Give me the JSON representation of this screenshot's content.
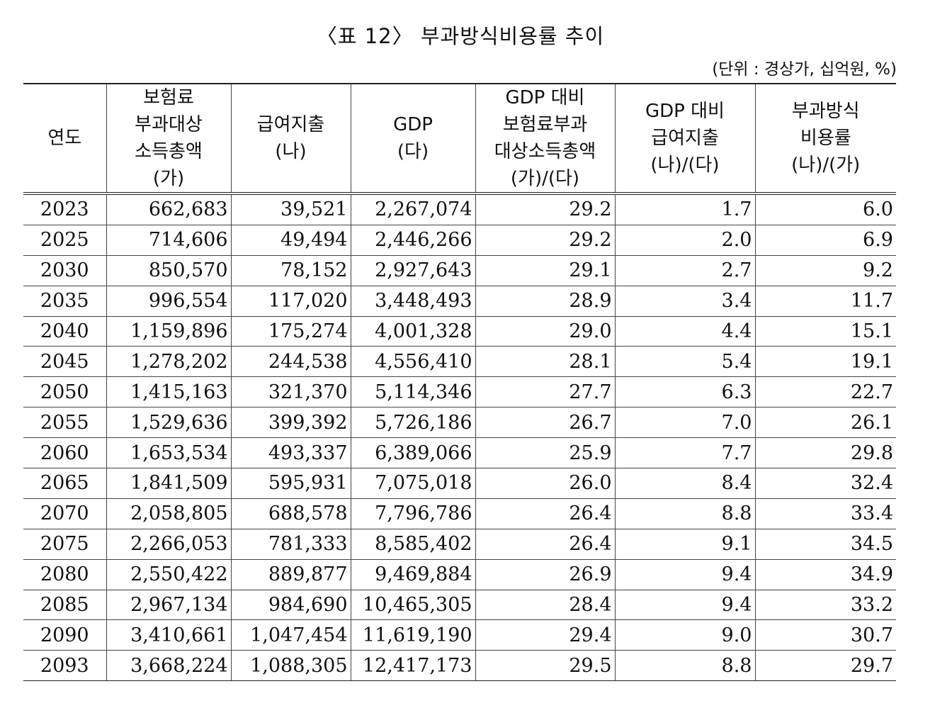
{
  "title": "〈표 12〉 부과방식비용률 추이",
  "unit": "(단위 : 경상가, 십억원, %)",
  "headers": [
    {
      "lines": [
        "연도"
      ]
    },
    {
      "lines": [
        "보험료",
        "부과대상",
        "소득총액",
        "(가)"
      ]
    },
    {
      "lines": [
        "급여지출",
        "(나)"
      ]
    },
    {
      "lines": [
        "GDP",
        "(다)"
      ]
    },
    {
      "lines": [
        "GDP 대비",
        "보험료부과",
        "대상소득총액",
        "(가)/(다)"
      ]
    },
    {
      "lines": [
        "GDP 대비",
        "급여지출",
        "(나)/(다)"
      ]
    },
    {
      "lines": [
        "부과방식",
        "비용률",
        "(나)/(가)"
      ]
    }
  ],
  "rows": [
    [
      "2023",
      "662,683",
      "39,521",
      "2,267,074",
      "29.2",
      "1.7",
      "6.0"
    ],
    [
      "2025",
      "714,606",
      "49,494",
      "2,446,266",
      "29.2",
      "2.0",
      "6.9"
    ],
    [
      "2030",
      "850,570",
      "78,152",
      "2,927,643",
      "29.1",
      "2.7",
      "9.2"
    ],
    [
      "2035",
      "996,554",
      "117,020",
      "3,448,493",
      "28.9",
      "3.4",
      "11.7"
    ],
    [
      "2040",
      "1,159,896",
      "175,274",
      "4,001,328",
      "29.0",
      "4.4",
      "15.1"
    ],
    [
      "2045",
      "1,278,202",
      "244,538",
      "4,556,410",
      "28.1",
      "5.4",
      "19.1"
    ],
    [
      "2050",
      "1,415,163",
      "321,370",
      "5,114,346",
      "27.7",
      "6.3",
      "22.7"
    ],
    [
      "2055",
      "1,529,636",
      "399,392",
      "5,726,186",
      "26.7",
      "7.0",
      "26.1"
    ],
    [
      "2060",
      "1,653,534",
      "493,337",
      "6,389,066",
      "25.9",
      "7.7",
      "29.8"
    ],
    [
      "2065",
      "1,841,509",
      "595,931",
      "7,075,018",
      "26.0",
      "8.4",
      "32.4"
    ],
    [
      "2070",
      "2,058,805",
      "688,578",
      "7,796,786",
      "26.4",
      "8.8",
      "33.4"
    ],
    [
      "2075",
      "2,266,053",
      "781,333",
      "8,585,402",
      "26.4",
      "9.1",
      "34.5"
    ],
    [
      "2080",
      "2,550,422",
      "889,877",
      "9,469,884",
      "26.9",
      "9.4",
      "34.9"
    ],
    [
      "2085",
      "2,967,134",
      "984,690",
      "10,465,305",
      "28.4",
      "9.4",
      "33.2"
    ],
    [
      "2090",
      "3,410,661",
      "1,047,454",
      "11,619,190",
      "29.4",
      "9.0",
      "30.7"
    ],
    [
      "2093",
      "3,668,224",
      "1,088,305",
      "12,417,173",
      "29.5",
      "8.8",
      "29.7"
    ]
  ]
}
